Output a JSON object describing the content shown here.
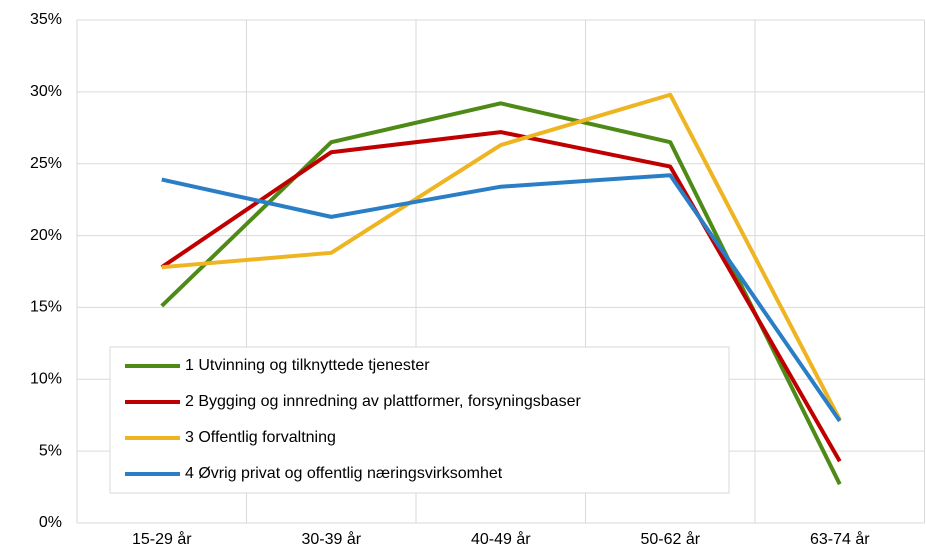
{
  "chart_data": {
    "type": "line",
    "categories": [
      "15-29 år",
      "30-39 år",
      "40-49 år",
      "50-62 år",
      "63-74 år"
    ],
    "series": [
      {
        "name": "1 Utvinning og tilknyttede tjenester",
        "color": "#4e8a16",
        "values": [
          15.1,
          26.5,
          29.2,
          26.5,
          2.7
        ]
      },
      {
        "name": "2 Bygging og innredning av plattformer, forsyningsbaser",
        "color": "#c00000",
        "values": [
          17.8,
          25.8,
          27.2,
          24.8,
          4.3
        ]
      },
      {
        "name": "3 Offentlig forvaltning",
        "color": "#eeb422",
        "values": [
          17.8,
          18.8,
          26.3,
          29.8,
          7.2
        ]
      },
      {
        "name": "4 Øvrig privat og offentlig næringsvirksomhet",
        "color": "#2a7ec6",
        "values": [
          23.9,
          21.3,
          23.4,
          24.2,
          7.1
        ]
      }
    ],
    "ylim": [
      0,
      35
    ],
    "yticks": [
      {
        "value": 0,
        "label": "0%"
      },
      {
        "value": 5,
        "label": "5%"
      },
      {
        "value": 10,
        "label": "10%"
      },
      {
        "value": 15,
        "label": "15%"
      },
      {
        "value": 20,
        "label": "20%"
      },
      {
        "value": 25,
        "label": "25%"
      },
      {
        "value": 30,
        "label": "30%"
      },
      {
        "value": 35,
        "label": "35%"
      }
    ],
    "grid": true,
    "legend": "lower-left"
  }
}
